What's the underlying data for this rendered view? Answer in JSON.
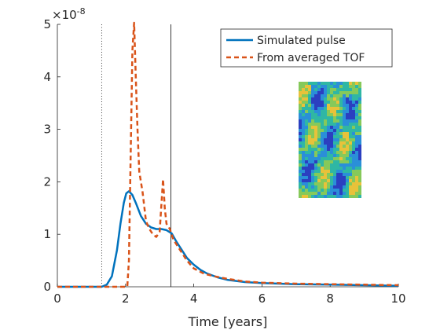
{
  "chart_data": {
    "type": "line",
    "xlabel": "Time [years]",
    "ylabel": "",
    "y_exponent_label": "×10",
    "y_exponent_power": "-8",
    "xlim": [
      0,
      10
    ],
    "ylim": [
      0,
      5
    ],
    "x_ticks": [
      0,
      2,
      4,
      6,
      8,
      10
    ],
    "y_ticks": [
      0,
      1,
      2,
      3,
      4,
      5
    ],
    "x_tick_labels": [
      "0",
      "2",
      "4",
      "6",
      "8",
      "10"
    ],
    "y_tick_labels": [
      "0",
      "1",
      "2",
      "3",
      "4",
      "5"
    ],
    "grid": false,
    "legend_placement": "top-right",
    "vertical_lines": [
      {
        "x": 1.3,
        "style": "dotted"
      },
      {
        "x": 3.33,
        "style": "solid"
      }
    ],
    "series": [
      {
        "name": "Simulated pulse",
        "color": "#0072BD",
        "style": "solid",
        "x": [
          0,
          1.3,
          1.45,
          1.6,
          1.75,
          1.85,
          1.95,
          2.02,
          2.1,
          2.2,
          2.3,
          2.45,
          2.6,
          2.75,
          2.9,
          3.05,
          3.2,
          3.35,
          3.5,
          3.65,
          3.8,
          4.0,
          4.2,
          4.4,
          4.7,
          5.0,
          5.5,
          6.0,
          7.0,
          8.0,
          9.0,
          10.0
        ],
        "y": [
          0,
          0,
          0.04,
          0.2,
          0.7,
          1.2,
          1.6,
          1.78,
          1.82,
          1.75,
          1.6,
          1.35,
          1.2,
          1.13,
          1.1,
          1.1,
          1.08,
          1.02,
          0.85,
          0.7,
          0.55,
          0.42,
          0.32,
          0.25,
          0.18,
          0.13,
          0.09,
          0.07,
          0.05,
          0.04,
          0.03,
          0.02
        ]
      },
      {
        "name": "From averaged TOF",
        "color": "#D95319",
        "style": "dashed",
        "x": [
          0,
          2.05,
          2.1,
          2.15,
          2.2,
          2.25,
          2.3,
          2.35,
          2.4,
          2.5,
          2.6,
          2.7,
          2.8,
          2.9,
          3.0,
          3.1,
          3.15,
          3.2,
          3.25,
          3.3,
          3.4,
          3.6,
          3.8,
          4.0,
          4.3,
          4.6,
          5.0,
          5.5,
          6.0,
          7.0,
          8.0,
          9.0,
          10.0
        ],
        "y": [
          0,
          0,
          0.5,
          2.5,
          4.5,
          5.3,
          4.0,
          3.0,
          2.2,
          1.8,
          1.25,
          1.1,
          1.0,
          0.95,
          1.05,
          2.05,
          1.5,
          1.2,
          1.15,
          1.1,
          0.9,
          0.7,
          0.5,
          0.35,
          0.25,
          0.2,
          0.15,
          0.1,
          0.08,
          0.06,
          0.05,
          0.04,
          0.03
        ]
      }
    ]
  },
  "inset": {
    "description_icon": "permeability-field-image",
    "colors": [
      "#2b3fc0",
      "#2a8fd8",
      "#2fb7a4",
      "#86c95a",
      "#e8c23a"
    ]
  }
}
